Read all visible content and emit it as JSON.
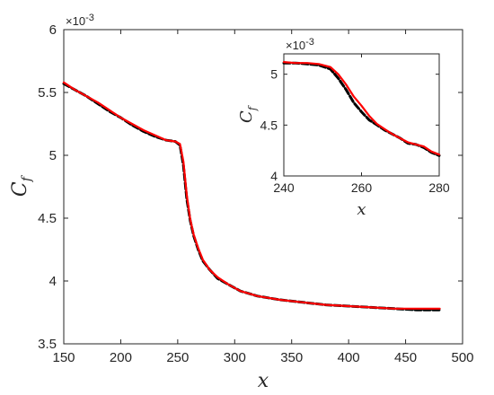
{
  "chart_data": [
    {
      "type": "line",
      "xlabel": "x",
      "ylabel": "C",
      "ylabel_sub": "f",
      "exponent": "×10",
      "exponent_power": "-3",
      "xlim": [
        150,
        500
      ],
      "ylim": [
        3.5,
        6
      ],
      "xticks": [
        "150",
        "200",
        "250",
        "300",
        "350",
        "400",
        "450",
        "500"
      ],
      "yticks": [
        "3.5",
        "4",
        "4.5",
        "5",
        "5.5",
        "6"
      ],
      "series": [
        {
          "color": "#000000",
          "style": "dashed",
          "x": [
            150,
            160,
            170,
            180,
            190,
            200,
            210,
            220,
            230,
            240,
            248,
            252,
            255,
            258,
            261,
            264,
            268,
            272,
            278,
            285,
            295,
            305,
            320,
            340,
            360,
            380,
            400,
            420,
            440,
            460,
            480
          ],
          "y": [
            5.57,
            5.52,
            5.47,
            5.41,
            5.35,
            5.3,
            5.24,
            5.19,
            5.15,
            5.12,
            5.11,
            5.08,
            4.92,
            4.65,
            4.48,
            4.36,
            4.25,
            4.16,
            4.09,
            4.02,
            3.97,
            3.92,
            3.88,
            3.85,
            3.83,
            3.81,
            3.8,
            3.79,
            3.78,
            3.77,
            3.77
          ]
        },
        {
          "color": "#ff0000",
          "style": "solid",
          "x": [
            150,
            160,
            170,
            180,
            190,
            200,
            210,
            220,
            230,
            240,
            248,
            252,
            255,
            258,
            261,
            264,
            268,
            272,
            278,
            285,
            295,
            305,
            320,
            340,
            360,
            380,
            400,
            420,
            440,
            460,
            480
          ],
          "y": [
            5.58,
            5.52,
            5.47,
            5.42,
            5.36,
            5.3,
            5.25,
            5.2,
            5.16,
            5.12,
            5.11,
            5.09,
            4.95,
            4.68,
            4.49,
            4.37,
            4.26,
            4.17,
            4.09,
            4.03,
            3.97,
            3.92,
            3.88,
            3.85,
            3.83,
            3.81,
            3.8,
            3.79,
            3.78,
            3.78,
            3.78
          ]
        }
      ]
    },
    {
      "type": "line",
      "xlabel": "x",
      "ylabel": "C",
      "ylabel_sub": "f",
      "exponent": "×10",
      "exponent_power": "-3",
      "xlim": [
        240,
        280
      ],
      "ylim": [
        4,
        5.2
      ],
      "xticks": [
        "240",
        "260",
        "280"
      ],
      "yticks": [
        "4",
        "4.5",
        "5"
      ],
      "series": [
        {
          "color": "#000000",
          "style": "dashed",
          "x": [
            240,
            243,
            246,
            249,
            252,
            254,
            256,
            258,
            260,
            262,
            264,
            266,
            268,
            270,
            272,
            274,
            276,
            278,
            280
          ],
          "y": [
            5.11,
            5.11,
            5.1,
            5.09,
            5.05,
            4.96,
            4.85,
            4.72,
            4.63,
            4.55,
            4.5,
            4.45,
            4.41,
            4.37,
            4.32,
            4.31,
            4.28,
            4.23,
            4.2
          ]
        },
        {
          "color": "#ff0000",
          "style": "solid",
          "x": [
            240,
            243,
            246,
            249,
            252,
            254,
            256,
            258,
            260,
            262,
            264,
            266,
            268,
            270,
            272,
            274,
            276,
            278,
            280
          ],
          "y": [
            5.12,
            5.11,
            5.11,
            5.1,
            5.07,
            5.0,
            4.9,
            4.78,
            4.69,
            4.59,
            4.51,
            4.46,
            4.41,
            4.37,
            4.33,
            4.31,
            4.29,
            4.24,
            4.21
          ]
        }
      ]
    }
  ]
}
